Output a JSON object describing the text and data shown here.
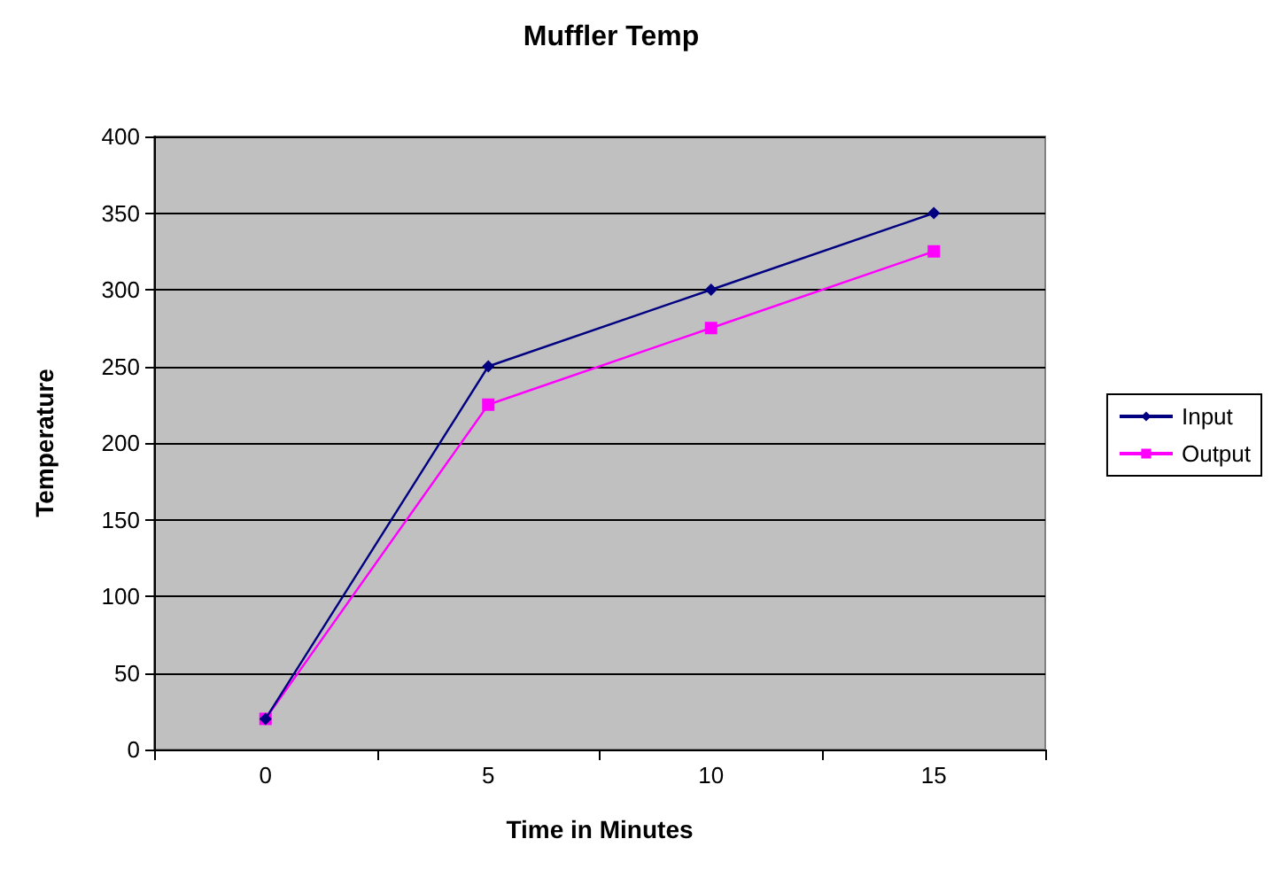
{
  "chart_data": {
    "type": "line",
    "title": "Muffler Temp",
    "xlabel": "Time in Minutes",
    "ylabel": "Temperature",
    "categories": [
      "0",
      "5",
      "10",
      "15"
    ],
    "series": [
      {
        "name": "Input",
        "color": "#000080",
        "marker": "diamond",
        "values": [
          20,
          250,
          300,
          350
        ]
      },
      {
        "name": "Output",
        "color": "#ff00ff",
        "marker": "square",
        "values": [
          20,
          225,
          275,
          325
        ]
      }
    ],
    "ylim": [
      0,
      400
    ],
    "yticks": [
      0,
      50,
      100,
      150,
      200,
      250,
      300,
      350,
      400
    ],
    "grid": "y",
    "legend": "right",
    "line_style": "solid"
  }
}
